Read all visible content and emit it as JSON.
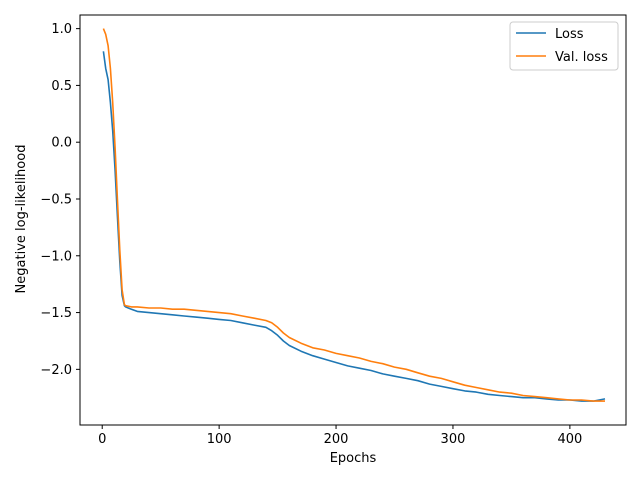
{
  "chart_data": {
    "type": "line",
    "title": "",
    "xlabel": "Epochs",
    "ylabel": "Negative log-likelihood",
    "xlim": [
      -19,
      448
    ],
    "ylim": [
      -2.49,
      1.12
    ],
    "xticks": [
      0,
      100,
      200,
      300,
      400
    ],
    "yticks": [
      1.0,
      0.5,
      0.0,
      -0.5,
      -1.0,
      -1.5,
      -2.0
    ],
    "xtick_labels": [
      "0",
      "100",
      "200",
      "300",
      "400"
    ],
    "ytick_labels": [
      "1.0",
      "0.5",
      "0.0",
      "−0.5",
      "−1.0",
      "−1.5",
      "−2.0"
    ],
    "grid": false,
    "legend_position": "top-right",
    "series": [
      {
        "name": "Loss",
        "color": "#1f77b4",
        "x": [
          1,
          3,
          5,
          7,
          9,
          11,
          13,
          15,
          17,
          19,
          20,
          25,
          30,
          40,
          50,
          60,
          70,
          80,
          90,
          100,
          110,
          120,
          130,
          140,
          145,
          150,
          155,
          160,
          170,
          180,
          190,
          200,
          210,
          220,
          230,
          240,
          250,
          260,
          270,
          280,
          290,
          300,
          310,
          320,
          330,
          340,
          350,
          360,
          370,
          380,
          390,
          400,
          410,
          420,
          430
        ],
        "y": [
          0.8,
          0.65,
          0.55,
          0.35,
          0.1,
          -0.25,
          -0.65,
          -1.05,
          -1.35,
          -1.44,
          -1.45,
          -1.47,
          -1.49,
          -1.5,
          -1.51,
          -1.52,
          -1.53,
          -1.54,
          -1.55,
          -1.56,
          -1.57,
          -1.59,
          -1.61,
          -1.63,
          -1.66,
          -1.7,
          -1.75,
          -1.79,
          -1.84,
          -1.88,
          -1.91,
          -1.94,
          -1.97,
          -1.99,
          -2.01,
          -2.04,
          -2.06,
          -2.08,
          -2.1,
          -2.13,
          -2.15,
          -2.17,
          -2.19,
          -2.2,
          -2.22,
          -2.23,
          -2.24,
          -2.25,
          -2.25,
          -2.26,
          -2.27,
          -2.27,
          -2.28,
          -2.28,
          -2.26
        ]
      },
      {
        "name": "Val. loss",
        "color": "#ff7f0e",
        "x": [
          1,
          3,
          5,
          7,
          9,
          11,
          13,
          15,
          17,
          19,
          20,
          25,
          30,
          40,
          50,
          60,
          70,
          80,
          90,
          100,
          110,
          120,
          130,
          140,
          145,
          150,
          155,
          160,
          170,
          180,
          190,
          200,
          210,
          220,
          230,
          240,
          250,
          260,
          270,
          280,
          290,
          300,
          310,
          320,
          330,
          340,
          350,
          360,
          370,
          380,
          390,
          400,
          410,
          420,
          430
        ],
        "y": [
          1.0,
          0.95,
          0.85,
          0.65,
          0.35,
          -0.05,
          -0.5,
          -0.95,
          -1.3,
          -1.43,
          -1.44,
          -1.45,
          -1.45,
          -1.46,
          -1.46,
          -1.47,
          -1.47,
          -1.48,
          -1.49,
          -1.5,
          -1.51,
          -1.53,
          -1.55,
          -1.57,
          -1.59,
          -1.63,
          -1.68,
          -1.72,
          -1.77,
          -1.81,
          -1.83,
          -1.86,
          -1.88,
          -1.9,
          -1.93,
          -1.95,
          -1.98,
          -2.0,
          -2.03,
          -2.06,
          -2.08,
          -2.11,
          -2.14,
          -2.16,
          -2.18,
          -2.2,
          -2.21,
          -2.23,
          -2.24,
          -2.25,
          -2.26,
          -2.27,
          -2.27,
          -2.28,
          -2.28
        ]
      }
    ]
  }
}
